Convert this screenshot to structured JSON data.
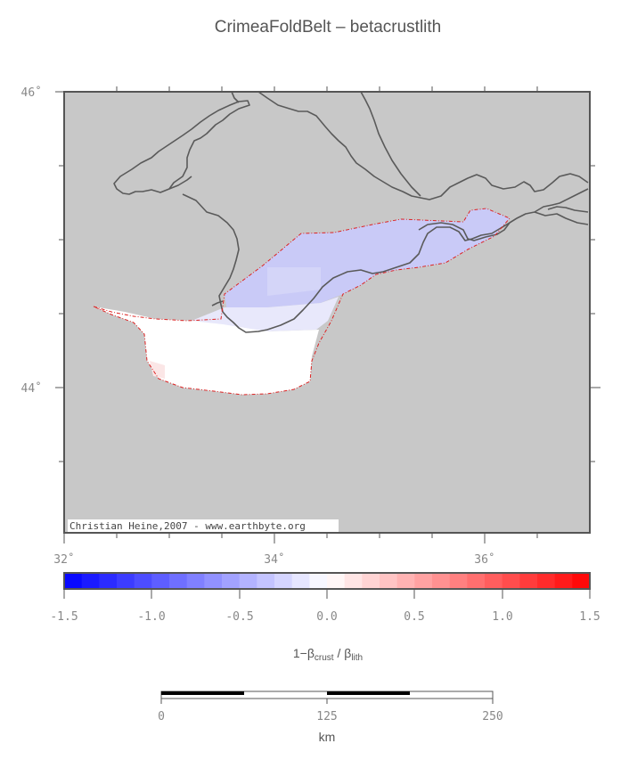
{
  "title": "CrimeaFoldBelt – betacrustlith",
  "map": {
    "lat_labels": [
      "46˚",
      "44˚"
    ],
    "lon_labels": [
      "32˚",
      "34˚",
      "36˚"
    ],
    "lat_range": [
      43.0,
      46.0
    ],
    "lon_range": [
      32.0,
      37.0
    ],
    "credit": "Christian Heine,2007 - www.earthbyte.org",
    "ocean_color": "#c8c8c8",
    "coast_color": "#5a5a5a",
    "outline_color": "#dd2222"
  },
  "colorbar": {
    "range": [
      -1.5,
      1.5
    ],
    "tick_labels": [
      "-1.5",
      "-1.0",
      "-0.5",
      "0.0",
      "0.5",
      "1.0",
      "1.5"
    ],
    "label_main": "1−β",
    "label_sub1": "crust",
    "label_mid": " / β",
    "label_sub2": "lith",
    "low_color": "#0000ff",
    "mid_color": "#ffffff",
    "high_color": "#ff0000"
  },
  "scalebar": {
    "tick_labels": [
      "0",
      "125",
      "250"
    ],
    "unit": "km"
  }
}
